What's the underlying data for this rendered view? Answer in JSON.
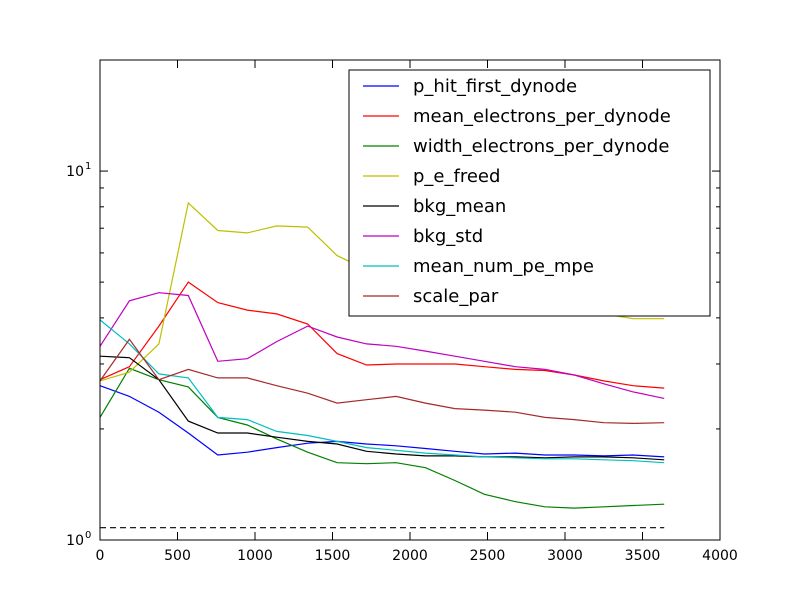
{
  "chart_data": {
    "type": "line",
    "title": "",
    "xlabel": "",
    "ylabel": "",
    "xlim": [
      0,
      4000
    ],
    "ylim": [
      1,
      20
    ],
    "yscale": "log",
    "grid": false,
    "legend_position": "top-right",
    "xticks": [
      0,
      500,
      1000,
      1500,
      2000,
      2500,
      3000,
      3500,
      4000
    ],
    "xtick_labels": [
      "0",
      "500",
      "1000",
      "1500",
      "2000",
      "2500",
      "3000",
      "3500",
      "4000"
    ],
    "ytick_labels": [
      {
        "value": 1,
        "label": "10",
        "sup": "0"
      },
      {
        "value": 10,
        "label": "10",
        "sup": "1"
      }
    ],
    "x": [
      0,
      190,
      380,
      570,
      760,
      950,
      1140,
      1340,
      1530,
      1720,
      1910,
      2100,
      2290,
      2480,
      2680,
      2870,
      3060,
      3250,
      3440,
      3640
    ],
    "series": [
      {
        "name": "p_hit_first_dynode",
        "color": "#0000ff",
        "values": [
          2.62,
          2.45,
          2.22,
          1.95,
          1.7,
          1.73,
          1.78,
          1.83,
          1.85,
          1.82,
          1.8,
          1.77,
          1.74,
          1.71,
          1.72,
          1.7,
          1.7,
          1.69,
          1.7,
          1.68
        ]
      },
      {
        "name": "mean_electrons_per_dynode",
        "color": "#ff0000",
        "values": [
          2.72,
          2.95,
          3.8,
          5.0,
          4.4,
          4.2,
          4.1,
          3.85,
          3.2,
          2.98,
          3.0,
          3.0,
          3.0,
          2.95,
          2.9,
          2.88,
          2.8,
          2.7,
          2.62,
          2.58
        ]
      },
      {
        "name": "width_electrons_per_dynode",
        "color": "#008000",
        "values": [
          2.15,
          2.92,
          2.72,
          2.6,
          2.15,
          2.05,
          1.88,
          1.73,
          1.62,
          1.61,
          1.62,
          1.57,
          1.45,
          1.33,
          1.27,
          1.23,
          1.22,
          1.23,
          1.24,
          1.25
        ]
      },
      {
        "name": "p_e_freed",
        "color": "#bfbf00",
        "values": [
          2.7,
          2.85,
          3.4,
          8.2,
          6.9,
          6.8,
          7.1,
          7.05,
          5.9,
          5.4,
          5.2,
          5.0,
          4.8,
          4.7,
          4.5,
          4.4,
          4.3,
          4.1,
          3.98,
          3.98
        ]
      },
      {
        "name": "bkg_mean",
        "color": "#000000",
        "values": [
          3.15,
          3.12,
          2.72,
          2.1,
          1.95,
          1.95,
          1.9,
          1.85,
          1.82,
          1.74,
          1.71,
          1.69,
          1.69,
          1.68,
          1.68,
          1.67,
          1.68,
          1.68,
          1.67,
          1.65
        ]
      },
      {
        "name": "bkg_std",
        "color": "#bf00bf",
        "values": [
          3.35,
          4.45,
          4.68,
          4.6,
          3.05,
          3.1,
          3.45,
          3.8,
          3.55,
          3.4,
          3.35,
          3.25,
          3.15,
          3.05,
          2.95,
          2.9,
          2.8,
          2.65,
          2.52,
          2.42
        ]
      },
      {
        "name": "mean_num_pe_mpe",
        "color": "#00bfbf",
        "values": [
          3.95,
          3.4,
          2.82,
          2.75,
          2.15,
          2.12,
          1.97,
          1.92,
          1.85,
          1.78,
          1.75,
          1.72,
          1.7,
          1.68,
          1.67,
          1.66,
          1.66,
          1.65,
          1.64,
          1.62
        ]
      },
      {
        "name": "scale_par",
        "color": "#a52a2a",
        "values": [
          2.7,
          3.5,
          2.72,
          2.9,
          2.75,
          2.75,
          2.62,
          2.5,
          2.35,
          2.4,
          2.45,
          2.35,
          2.27,
          2.25,
          2.22,
          2.15,
          2.12,
          2.08,
          2.07,
          2.08
        ]
      }
    ],
    "reference_line": {
      "style": "dashed",
      "color": "#000000",
      "y": 1.08,
      "x": [
        0,
        3640
      ]
    }
  }
}
